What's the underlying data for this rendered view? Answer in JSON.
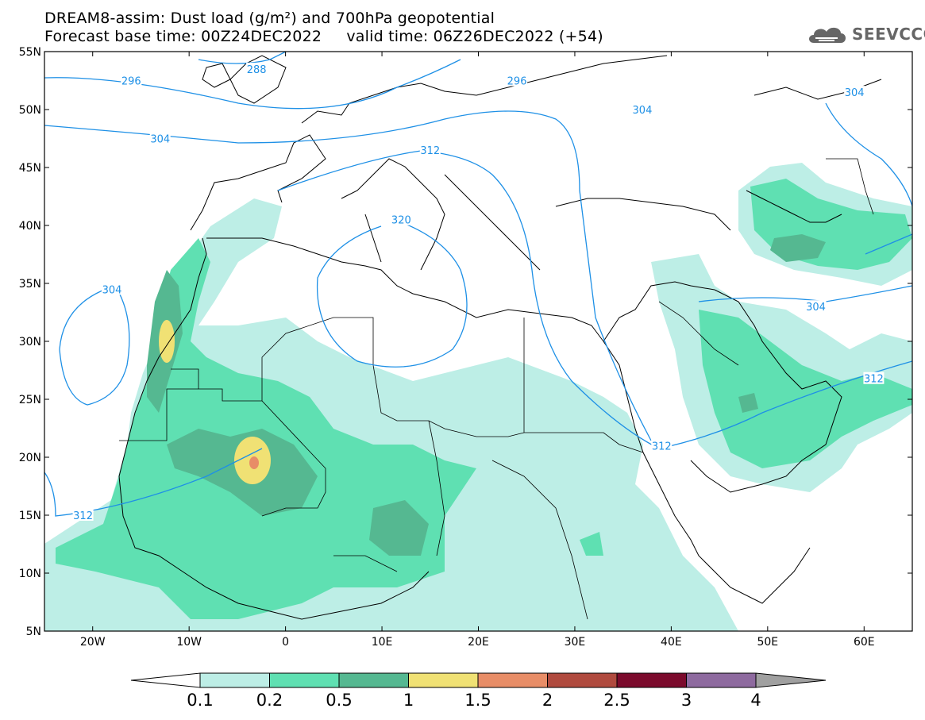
{
  "title": {
    "line1": "DREAM8-assim: Dust load (g/m²) and 700hPa geopotential",
    "line2": "Forecast base time: 00Z24DEC2022     valid time: 06Z26DEC2022 (+54)"
  },
  "logo": {
    "text": "SEEVCCC",
    "icon": "cloud-icon"
  },
  "map": {
    "lon_range": [
      -25,
      65
    ],
    "lat_range": [
      5,
      55
    ],
    "lat_ticks": [
      {
        "value": 55,
        "label": "55N"
      },
      {
        "value": 50,
        "label": "50N"
      },
      {
        "value": 45,
        "label": "45N"
      },
      {
        "value": 40,
        "label": "40N"
      },
      {
        "value": 35,
        "label": "35N"
      },
      {
        "value": 30,
        "label": "30N"
      },
      {
        "value": 25,
        "label": "25N"
      },
      {
        "value": 20,
        "label": "20N"
      },
      {
        "value": 15,
        "label": "15N"
      },
      {
        "value": 10,
        "label": "10N"
      },
      {
        "value": 5,
        "label": "5N"
      }
    ],
    "lon_ticks": [
      {
        "value": -20,
        "label": "20W"
      },
      {
        "value": -10,
        "label": "10W"
      },
      {
        "value": 0,
        "label": "0"
      },
      {
        "value": 10,
        "label": "10E"
      },
      {
        "value": 20,
        "label": "20E"
      },
      {
        "value": 30,
        "label": "30E"
      },
      {
        "value": 40,
        "label": "40E"
      },
      {
        "value": 50,
        "label": "50E"
      },
      {
        "value": 60,
        "label": "60E"
      }
    ],
    "contour_labels": [
      {
        "text": "288",
        "lon": -3,
        "lat": 53.5
      },
      {
        "text": "296",
        "lon": -16,
        "lat": 52.5
      },
      {
        "text": "296",
        "lon": 24,
        "lat": 52.5
      },
      {
        "text": "304",
        "lon": -13,
        "lat": 47.5
      },
      {
        "text": "304",
        "lon": 37,
        "lat": 50.0
      },
      {
        "text": "304",
        "lon": 59,
        "lat": 51.5
      },
      {
        "text": "312",
        "lon": 15,
        "lat": 46.5
      },
      {
        "text": "320",
        "lon": 12,
        "lat": 40.5
      },
      {
        "text": "304",
        "lon": -18,
        "lat": 34.5
      },
      {
        "text": "304",
        "lon": 55,
        "lat": 33.0
      },
      {
        "text": "312",
        "lon": 61,
        "lat": 26.8
      },
      {
        "text": "312",
        "lon": 39,
        "lat": 21.0
      },
      {
        "text": "312",
        "lon": -21,
        "lat": 15.0
      }
    ]
  },
  "colorbar": {
    "labels": [
      "0.1",
      "0.2",
      "0.5",
      "1",
      "1.5",
      "2",
      "2.5",
      "3",
      "4"
    ],
    "colors": [
      "#bdeee6",
      "#5fe0b2",
      "#55b891",
      "#f0e174",
      "#e88d67",
      "#b04a3e",
      "#7b0a2c",
      "#8e6a9f"
    ]
  }
}
